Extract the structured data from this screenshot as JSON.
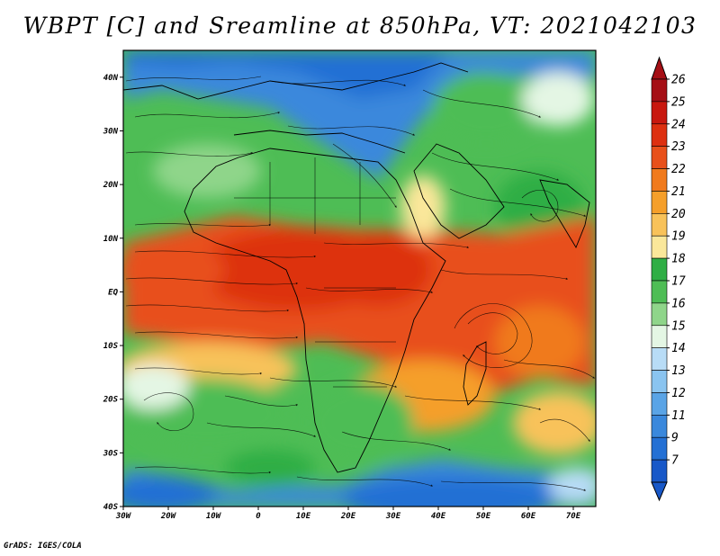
{
  "title": "WBPT [C] and Sreamline at 850hPa, VT: 2021042103",
  "credit": "GrADS: IGES/COLA",
  "map": {
    "lon_range": [
      -30,
      75
    ],
    "lat_range": [
      -40,
      45
    ],
    "lat_ticks": [
      {
        "value": 40,
        "label": "40N"
      },
      {
        "value": 30,
        "label": "30N"
      },
      {
        "value": 20,
        "label": "20N"
      },
      {
        "value": 10,
        "label": "10N"
      },
      {
        "value": 0,
        "label": "EQ"
      },
      {
        "value": -10,
        "label": "10S"
      },
      {
        "value": -20,
        "label": "20S"
      },
      {
        "value": -30,
        "label": "30S"
      },
      {
        "value": -40,
        "label": "40S"
      }
    ],
    "lon_ticks": [
      {
        "value": -30,
        "label": "30W"
      },
      {
        "value": -20,
        "label": "20W"
      },
      {
        "value": -10,
        "label": "10W"
      },
      {
        "value": 0,
        "label": "0"
      },
      {
        "value": 10,
        "label": "10E"
      },
      {
        "value": 20,
        "label": "20E"
      },
      {
        "value": 30,
        "label": "30E"
      },
      {
        "value": 40,
        "label": "40E"
      },
      {
        "value": 50,
        "label": "50E"
      },
      {
        "value": 60,
        "label": "60E"
      },
      {
        "value": 70,
        "label": "70E"
      }
    ]
  },
  "colorbar": {
    "levels": [
      "26",
      "25",
      "24",
      "23",
      "22",
      "21",
      "20",
      "19",
      "18",
      "17",
      "16",
      "15",
      "14",
      "13",
      "12",
      "11",
      "9",
      "7"
    ],
    "colors": [
      "#a50f15",
      "#c8180f",
      "#dd3010",
      "#e8501a",
      "#f07a1c",
      "#f59f2a",
      "#f8c25a",
      "#fae79a",
      "#2fae45",
      "#4ebd55",
      "#8fd58a",
      "#e4f6e4",
      "#b8dcf6",
      "#8ac4f0",
      "#5aa4e6",
      "#3a88dc",
      "#2470d4",
      "#1858c8"
    ],
    "cap_top_color": "#a50f15",
    "cap_bottom_color": "#1858c8"
  }
}
